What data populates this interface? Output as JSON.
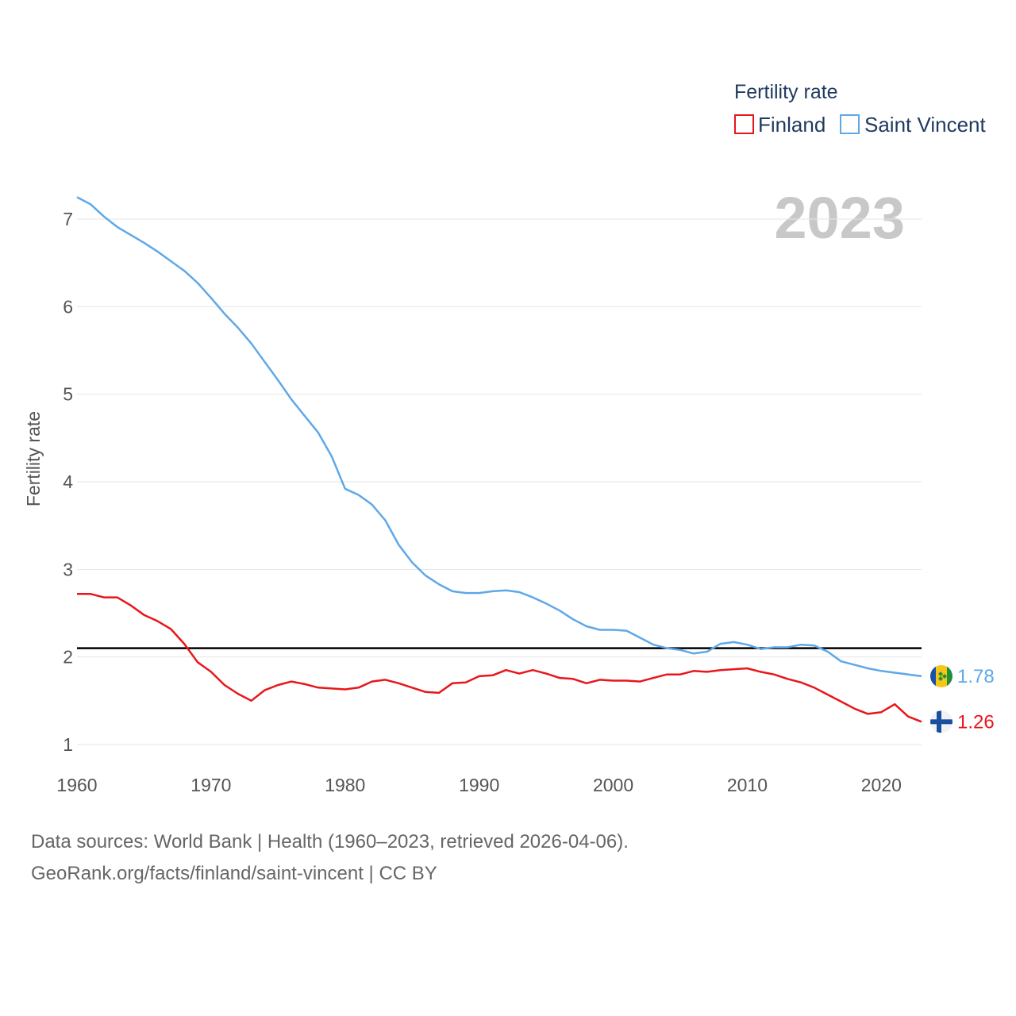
{
  "chart_data": {
    "type": "line",
    "title": "Fertility rate",
    "year_label": "2023",
    "ylabel": "Fertility rate",
    "xlabel": "",
    "xlim": [
      1960,
      2023
    ],
    "ylim": [
      1,
      7.3
    ],
    "x_ticks": [
      1960,
      1970,
      1980,
      1990,
      2000,
      2010,
      2020
    ],
    "y_ticks": [
      1,
      2,
      3,
      4,
      5,
      6,
      7
    ],
    "reference_line": {
      "value": 2.1,
      "color": "#000000"
    },
    "legend_position": "top-right",
    "x": [
      1960,
      1961,
      1962,
      1963,
      1964,
      1965,
      1966,
      1967,
      1968,
      1969,
      1970,
      1971,
      1972,
      1973,
      1974,
      1975,
      1976,
      1977,
      1978,
      1979,
      1980,
      1981,
      1982,
      1983,
      1984,
      1985,
      1986,
      1987,
      1988,
      1989,
      1990,
      1991,
      1992,
      1993,
      1994,
      1995,
      1996,
      1997,
      1998,
      1999,
      2000,
      2001,
      2002,
      2003,
      2004,
      2005,
      2006,
      2007,
      2008,
      2009,
      2010,
      2011,
      2012,
      2013,
      2014,
      2015,
      2016,
      2017,
      2018,
      2019,
      2020,
      2021,
      2022,
      2023
    ],
    "series": [
      {
        "name": "Finland",
        "color": "#e8161b",
        "end_label": "1.26",
        "flag": "finland-flag-icon",
        "values": [
          2.72,
          2.72,
          2.68,
          2.68,
          2.59,
          2.48,
          2.41,
          2.32,
          2.15,
          1.94,
          1.83,
          1.68,
          1.58,
          1.5,
          1.62,
          1.68,
          1.72,
          1.69,
          1.65,
          1.64,
          1.63,
          1.65,
          1.72,
          1.74,
          1.7,
          1.65,
          1.6,
          1.59,
          1.7,
          1.71,
          1.78,
          1.79,
          1.85,
          1.81,
          1.85,
          1.81,
          1.76,
          1.75,
          1.7,
          1.74,
          1.73,
          1.73,
          1.72,
          1.76,
          1.8,
          1.8,
          1.84,
          1.83,
          1.85,
          1.86,
          1.87,
          1.83,
          1.8,
          1.75,
          1.71,
          1.65,
          1.57,
          1.49,
          1.41,
          1.35,
          1.37,
          1.46,
          1.32,
          1.26
        ]
      },
      {
        "name": "Saint Vincent",
        "color": "#5fa8e8",
        "end_label": "1.78",
        "flag": "saint-vincent-flag-icon",
        "values": [
          7.25,
          7.17,
          7.03,
          6.91,
          6.82,
          6.73,
          6.63,
          6.52,
          6.41,
          6.27,
          6.1,
          5.92,
          5.76,
          5.58,
          5.37,
          5.16,
          4.94,
          4.75,
          4.56,
          4.29,
          3.92,
          3.85,
          3.74,
          3.56,
          3.28,
          3.08,
          2.93,
          2.83,
          2.75,
          2.73,
          2.73,
          2.75,
          2.76,
          2.74,
          2.68,
          2.61,
          2.53,
          2.43,
          2.35,
          2.31,
          2.31,
          2.3,
          2.22,
          2.14,
          2.1,
          2.08,
          2.04,
          2.06,
          2.15,
          2.17,
          2.14,
          2.09,
          2.11,
          2.11,
          2.14,
          2.13,
          2.06,
          1.95,
          1.91,
          1.87,
          1.84,
          1.82,
          1.8,
          1.78
        ]
      }
    ]
  },
  "legend": {
    "title": "Fertility rate",
    "items": [
      "Finland",
      "Saint Vincent"
    ]
  },
  "footer": {
    "sources": "Data sources: World Bank | Health (1960–2023, retrieved 2026-04-06).",
    "credit": "GeoRank.org/facts/finland/saint-vincent | CC BY"
  }
}
